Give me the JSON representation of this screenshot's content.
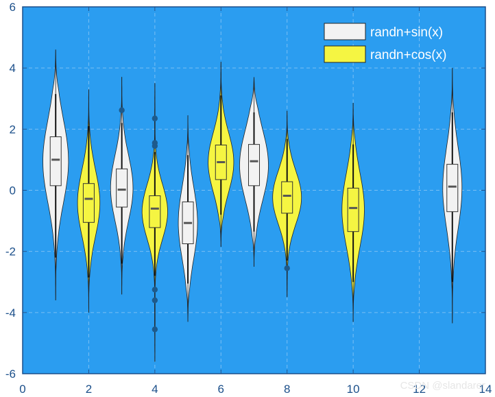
{
  "chart_data": {
    "type": "violin",
    "title": "",
    "xlabel": "",
    "ylabel": "",
    "xlim": [
      0,
      14
    ],
    "ylim": [
      -6,
      6
    ],
    "xticks": [
      0,
      2,
      4,
      6,
      8,
      10,
      12,
      14
    ],
    "yticks": [
      -6,
      -4,
      -2,
      0,
      2,
      4,
      6
    ],
    "grid": true,
    "legend_position": "top-right",
    "background_color": "#2b9df0",
    "series": [
      {
        "name": "randn+sin(x)",
        "color": "#f2f2f2"
      },
      {
        "name": "randn+cos(x)",
        "color": "#f5f542"
      }
    ],
    "violins": [
      {
        "x": 1,
        "series": 0,
        "width": 0.4,
        "ymin": -3.6,
        "ymax": 4.6,
        "q1": 0.15,
        "median": 1.0,
        "q3": 1.75,
        "whisker_low": -2.2,
        "whisker_high": 3.15,
        "outliers": []
      },
      {
        "x": 2,
        "series": 1,
        "width": 0.35,
        "ymin": -4.0,
        "ymax": 3.3,
        "q1": -1.05,
        "median": -0.28,
        "q3": 0.22,
        "whisker_low": -2.85,
        "whisker_high": 2.1,
        "outliers": []
      },
      {
        "x": 3,
        "series": 0,
        "width": 0.35,
        "ymin": -3.4,
        "ymax": 3.7,
        "q1": -0.55,
        "median": 0.02,
        "q3": 0.7,
        "whisker_low": -2.4,
        "whisker_high": 2.2,
        "outliers": [
          2.62
        ]
      },
      {
        "x": 4,
        "series": 1,
        "width": 0.4,
        "ymin": -5.6,
        "ymax": 3.5,
        "q1": -1.22,
        "median": -0.6,
        "q3": -0.18,
        "whisker_low": -2.8,
        "whisker_high": 1.25,
        "outliers": [
          2.35,
          1.55,
          1.45,
          -3.25,
          -3.6,
          -4.55
        ]
      },
      {
        "x": 5,
        "series": 0,
        "width": 0.3,
        "ymin": -4.3,
        "ymax": 2.45,
        "q1": -1.75,
        "median": -1.07,
        "q3": -0.38,
        "whisker_low": -3.05,
        "whisker_high": 1.15,
        "outliers": []
      },
      {
        "x": 6,
        "series": 1,
        "width": 0.4,
        "ymin": -1.85,
        "ymax": 4.2,
        "q1": 0.35,
        "median": 0.92,
        "q3": 1.48,
        "whisker_low": -0.8,
        "whisker_high": 3.1,
        "outliers": []
      },
      {
        "x": 7,
        "series": 0,
        "width": 0.45,
        "ymin": -2.5,
        "ymax": 3.7,
        "q1": 0.15,
        "median": 0.95,
        "q3": 1.5,
        "whisker_low": -1.35,
        "whisker_high": 2.55,
        "outliers": []
      },
      {
        "x": 8,
        "series": 1,
        "width": 0.45,
        "ymin": -3.5,
        "ymax": 2.6,
        "q1": -0.75,
        "median": -0.18,
        "q3": 0.28,
        "whisker_low": -2.3,
        "whisker_high": 1.68,
        "outliers": [
          -2.55
        ]
      },
      {
        "x": 10,
        "series": 1,
        "width": 0.35,
        "ymin": -4.3,
        "ymax": 2.85,
        "q1": -1.35,
        "median": -0.58,
        "q3": 0.07,
        "whisker_low": -3.0,
        "whisker_high": 1.5,
        "outliers": []
      },
      {
        "x": 13,
        "series": 0,
        "width": 0.3,
        "ymin": -4.35,
        "ymax": 4.0,
        "q1": -0.7,
        "median": 0.12,
        "q3": 0.85,
        "whisker_low": -3.0,
        "whisker_high": 2.55,
        "outliers": []
      }
    ]
  },
  "watermark": "CSDN @slandarer"
}
